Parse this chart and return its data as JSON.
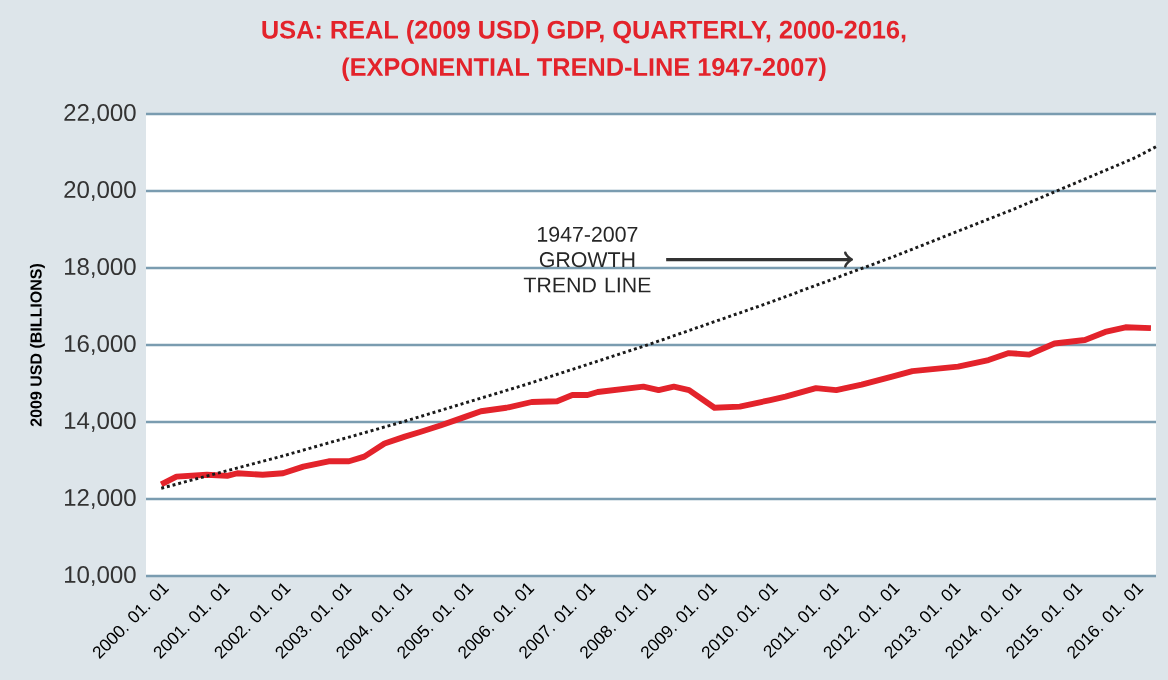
{
  "chart_data": {
    "type": "line",
    "title": "USA: REAL (2009 USD) GDP, QUARTERLY, 2000-2016,",
    "subtitle": "(EXPONENTIAL TREND-LINE 1947-2007)",
    "ylabel": "2009 USD (BILLIONS)",
    "series": [
      {
        "color": "#e3232b",
        "line_style": "solid",
        "x": [
          "2000-01-01",
          "2000-04-01",
          "2000-10-01",
          "2001-02-01",
          "2001-04-01",
          "2001-09-01",
          "2002-01-01",
          "2002-05-01",
          "2002-10-01",
          "2003-02-01",
          "2003-05-01",
          "2003-09-01",
          "2004-01-01",
          "2004-04-01",
          "2004-08-01",
          "2005-01-01",
          "2005-04-01",
          "2005-09-01",
          "2006-02-01",
          "2006-07-01",
          "2006-10-01",
          "2007-01-01",
          "2007-03-01",
          "2007-12-01",
          "2008-03-01",
          "2008-06-01",
          "2008-09-01",
          "2009-02-01",
          "2009-07-01",
          "2010-01-01",
          "2010-04-01",
          "2010-10-01",
          "2011-02-01",
          "2011-07-01",
          "2012-01-01",
          "2012-05-01",
          "2013-02-01",
          "2013-08-01",
          "2013-12-01",
          "2014-04-01",
          "2014-09-01",
          "2015-03-01",
          "2015-07-01",
          "2015-11-01",
          "2016-04-01"
        ],
        "values": [
          12380,
          12580,
          12630,
          12600,
          12670,
          12630,
          12670,
          12840,
          12980,
          12980,
          13100,
          13440,
          13620,
          13740,
          13910,
          14140,
          14280,
          14370,
          14520,
          14540,
          14700,
          14700,
          14780,
          14920,
          14830,
          14920,
          14830,
          14370,
          14400,
          14570,
          14660,
          14880,
          14830,
          14970,
          15180,
          15320,
          15440,
          15610,
          15790,
          15750,
          16040,
          16130,
          16340,
          16460,
          16440
        ]
      },
      {
        "color": "#1a1a1a",
        "line_style": "dotted",
        "x": [
          "2000-01-01",
          "2002-01-01",
          "2004-01-01",
          "2006-01-01",
          "2008-01-01",
          "2010-01-01",
          "2012-01-01",
          "2014-01-01",
          "2016-01-01",
          "2016-05-01"
        ],
        "values": [
          12280,
          13120,
          14020,
          14980,
          16010,
          17110,
          18280,
          19530,
          20870,
          21150
        ]
      }
    ],
    "annotations": [
      "1947-2007 GROWTH TREND LINE"
    ],
    "xlim": [
      "1999-10-01",
      "2016-05-01"
    ],
    "xticks": [
      {
        "value": "2000-01-01",
        "label": "2000. 01. 01"
      },
      {
        "value": "2001-01-01",
        "label": "2001. 01. 01"
      },
      {
        "value": "2002-01-01",
        "label": "2002. 01. 01"
      },
      {
        "value": "2003-01-01",
        "label": "2003. 01. 01"
      },
      {
        "value": "2004-01-01",
        "label": "2004. 01. 01"
      },
      {
        "value": "2005-01-01",
        "label": "2005. 01. 01"
      },
      {
        "value": "2006-01-01",
        "label": "2006. 01. 01"
      },
      {
        "value": "2007-01-01",
        "label": "2007. 01. 01"
      },
      {
        "value": "2008-01-01",
        "label": "2008. 01. 01"
      },
      {
        "value": "2009-01-01",
        "label": "2009. 01. 01"
      },
      {
        "value": "2010-01-01",
        "label": "2010. 01. 01"
      },
      {
        "value": "2011-01-01",
        "label": "2011. 01. 01"
      },
      {
        "value": "2012-01-01",
        "label": "2012. 01. 01"
      },
      {
        "value": "2013-01-01",
        "label": "2013. 01. 01"
      },
      {
        "value": "2014-01-01",
        "label": "2014. 01. 01"
      },
      {
        "value": "2015-01-01",
        "label": "2015. 01. 01"
      },
      {
        "value": "2016-01-01",
        "label": "2016. 01. 01"
      }
    ],
    "ylim": [
      10000,
      22000
    ],
    "yticks": [
      {
        "value": 10000,
        "label": "10,000"
      },
      {
        "value": 12000,
        "label": "12,000"
      },
      {
        "value": 14000,
        "label": "14,000"
      },
      {
        "value": 16000,
        "label": "16,000"
      },
      {
        "value": 18000,
        "label": "18,000"
      },
      {
        "value": 20000,
        "label": "20,000"
      },
      {
        "value": 22000,
        "label": "22,000"
      }
    ],
    "grid": "y",
    "marker": "none"
  }
}
